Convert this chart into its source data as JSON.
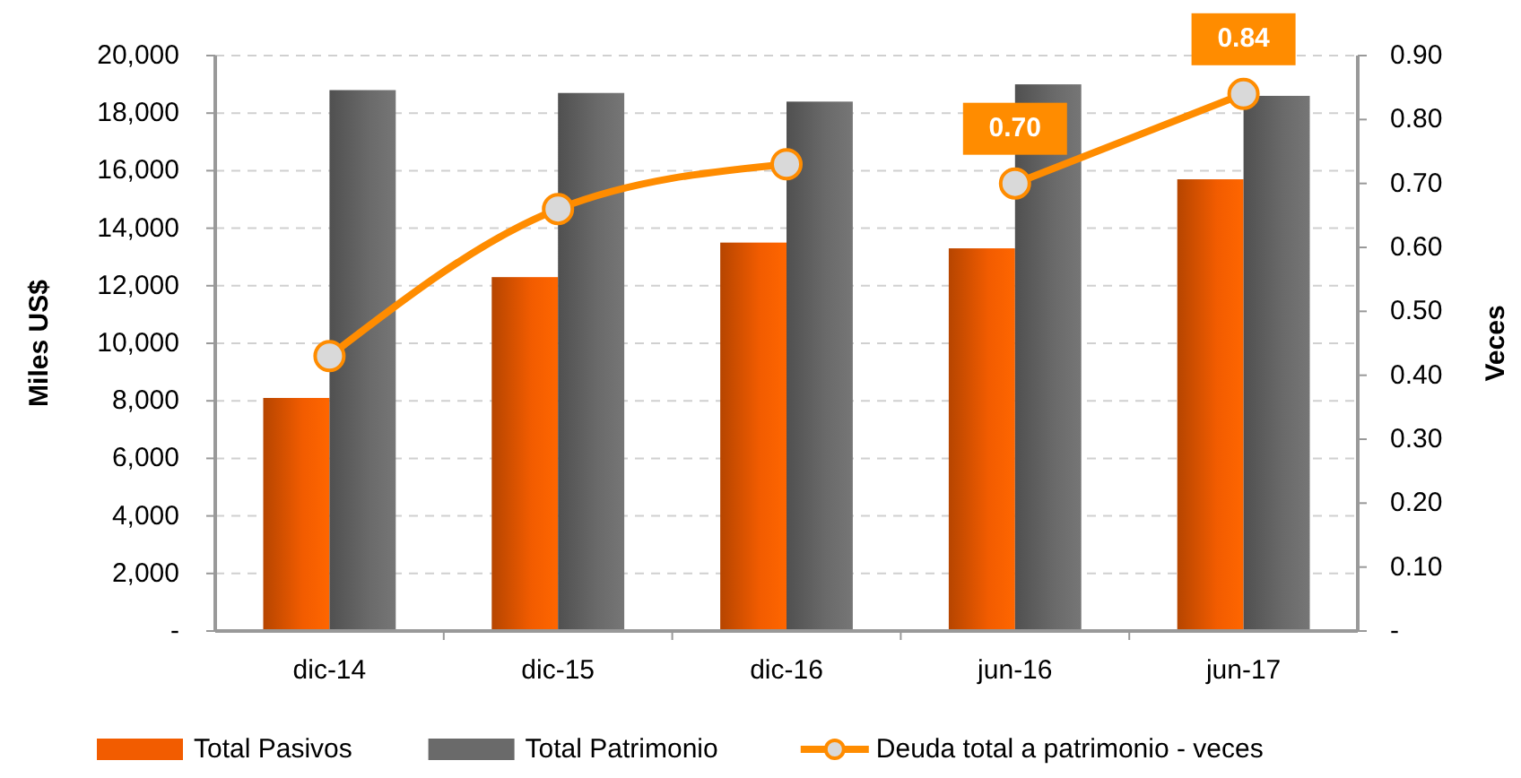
{
  "chart_data": {
    "type": "bar",
    "xlabel": null,
    "ylabel": "Miles US$",
    "y2label": "Veces",
    "categories": [
      "dic-14",
      "dic-15",
      "dic-16",
      "jun-16",
      "jun-17"
    ],
    "series": [
      {
        "name": "Total Pasivos",
        "color": "#f25c00",
        "values": [
          8100,
          12300,
          13500,
          13300,
          15700
        ]
      },
      {
        "name": "Total Patrimonio",
        "color": "#6a6a6a",
        "values": [
          18800,
          18700,
          18400,
          19000,
          18600
        ]
      },
      {
        "name": "Deuda total a patrimonio - veces",
        "type": "line",
        "axis": "y2",
        "color": "#ff8c00",
        "x": [
          "dic-14",
          "dic-15",
          "dic-16"
        ],
        "values": [
          0.43,
          0.66,
          0.73
        ]
      },
      {
        "type": "line",
        "axis": "y2",
        "color": "#ff8c00",
        "x": [
          "jun-16",
          "jun-17"
        ],
        "values": [
          0.7,
          0.84
        ],
        "value_labels": [
          "0.70",
          "0.84"
        ]
      }
    ],
    "ylim": [
      0,
      20000
    ],
    "yticks": [
      {
        "value": 0,
        "label": "-"
      },
      {
        "value": 2000,
        "label": "2,000"
      },
      {
        "value": 4000,
        "label": "4,000"
      },
      {
        "value": 6000,
        "label": "6,000"
      },
      {
        "value": 8000,
        "label": "8,000"
      },
      {
        "value": 10000,
        "label": "10,000"
      },
      {
        "value": 12000,
        "label": "12,000"
      },
      {
        "value": 14000,
        "label": "14,000"
      },
      {
        "value": 16000,
        "label": "16,000"
      },
      {
        "value": 18000,
        "label": "18,000"
      },
      {
        "value": 20000,
        "label": "20,000"
      }
    ],
    "y2lim": [
      0,
      0.9
    ],
    "y2ticks": [
      {
        "value": 0,
        "label": "-"
      },
      {
        "value": 0.1,
        "label": "0.10"
      },
      {
        "value": 0.2,
        "label": "0.20"
      },
      {
        "value": 0.3,
        "label": "0.30"
      },
      {
        "value": 0.4,
        "label": "0.40"
      },
      {
        "value": 0.5,
        "label": "0.50"
      },
      {
        "value": 0.6,
        "label": "0.60"
      },
      {
        "value": 0.7,
        "label": "0.70"
      },
      {
        "value": 0.8,
        "label": "0.80"
      },
      {
        "value": 0.9,
        "label": "0.90"
      }
    ],
    "grid": "y",
    "legend": "bottom",
    "marker": "circle",
    "line_style": "solid"
  }
}
